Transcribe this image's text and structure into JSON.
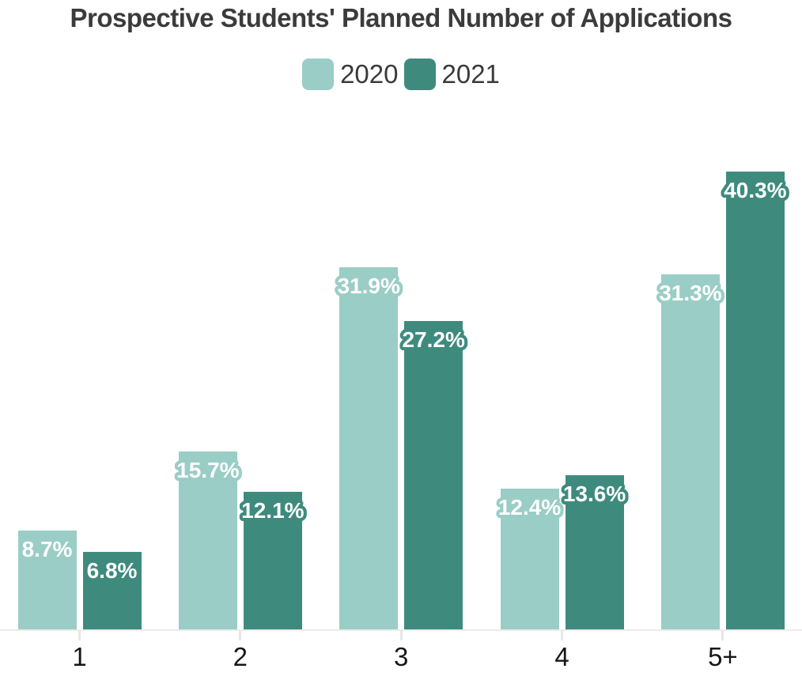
{
  "title": "Prospective Students' Planned Number of Applications",
  "chart_data": {
    "type": "bar",
    "title": "Prospective Students' Planned Number of Applications",
    "categories": [
      "1",
      "2",
      "3",
      "4",
      "5+"
    ],
    "series": [
      {
        "name": "2020",
        "color": "#9acdc6",
        "values": [
          8.7,
          15.7,
          31.9,
          12.4,
          31.3
        ]
      },
      {
        "name": "2021",
        "color": "#3e8b7e",
        "values": [
          6.8,
          12.1,
          27.2,
          13.6,
          40.3
        ]
      }
    ],
    "value_suffix": "%",
    "data_labels": true,
    "label_text_color": "#ffffff",
    "xlabel": "",
    "ylabel": "",
    "ylim": [
      0,
      45
    ],
    "grid": false,
    "legend_position": "top",
    "axis_line_color": "#ececec",
    "title_color": "#3b3b3b",
    "tick_label_color": "#161616"
  }
}
